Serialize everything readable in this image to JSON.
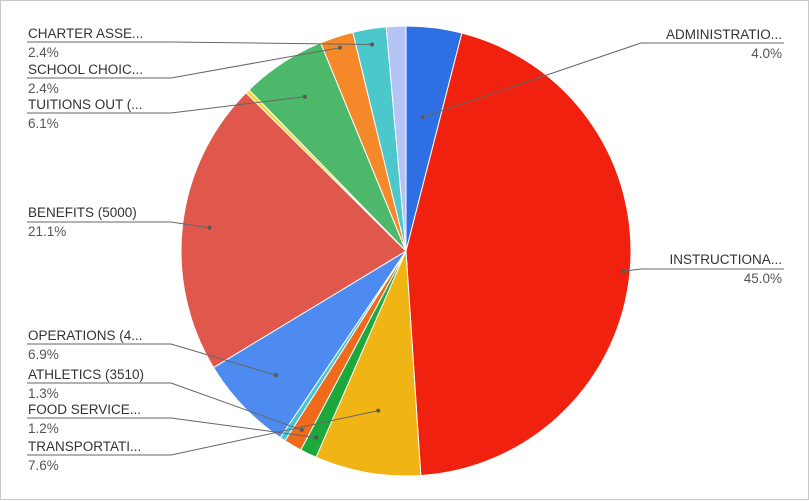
{
  "chart_data": {
    "type": "pie",
    "slices": [
      {
        "label": "ADMINISTRATIO...",
        "pct_text": "4.0%",
        "value": 4.0,
        "color": "#2f6fe4"
      },
      {
        "label": "INSTRUCTIONA...",
        "pct_text": "45.0%",
        "value": 45.0,
        "color": "#f0210f"
      },
      {
        "label": "TRANSPORTATI...",
        "pct_text": "7.6%",
        "value": 7.6,
        "color": "#f0b414"
      },
      {
        "label": "FOOD SERVICE...",
        "pct_text": "1.2%",
        "value": 1.2,
        "color": "#1ca83a"
      },
      {
        "label": "ATHLETICS (3510)",
        "pct_text": "1.3%",
        "value": 1.3,
        "color": "#f06a1c"
      },
      {
        "label": "",
        "pct_text": "",
        "value": 0.4,
        "color": "#43c5d4"
      },
      {
        "label": "OPERATIONS (4...",
        "pct_text": "6.9%",
        "value": 6.9,
        "color": "#4d8bf0"
      },
      {
        "label": "BENEFITS (5000)",
        "pct_text": "21.1%",
        "value": 21.1,
        "color": "#e0584c"
      },
      {
        "label": "",
        "pct_text": "",
        "value": 0.3,
        "color": "#f2dc30"
      },
      {
        "label": "TUITIONS OUT (...",
        "pct_text": "6.1%",
        "value": 6.1,
        "color": "#4db86a"
      },
      {
        "label": "SCHOOL CHOIC...",
        "pct_text": "2.4%",
        "value": 2.4,
        "color": "#f5892a"
      },
      {
        "label": "CHARTER ASSE...",
        "pct_text": "2.4%",
        "value": 2.4,
        "color": "#4cc8cc"
      },
      {
        "label": "",
        "pct_text": "",
        "value": 1.4,
        "color": "#b3c4f5"
      }
    ]
  }
}
